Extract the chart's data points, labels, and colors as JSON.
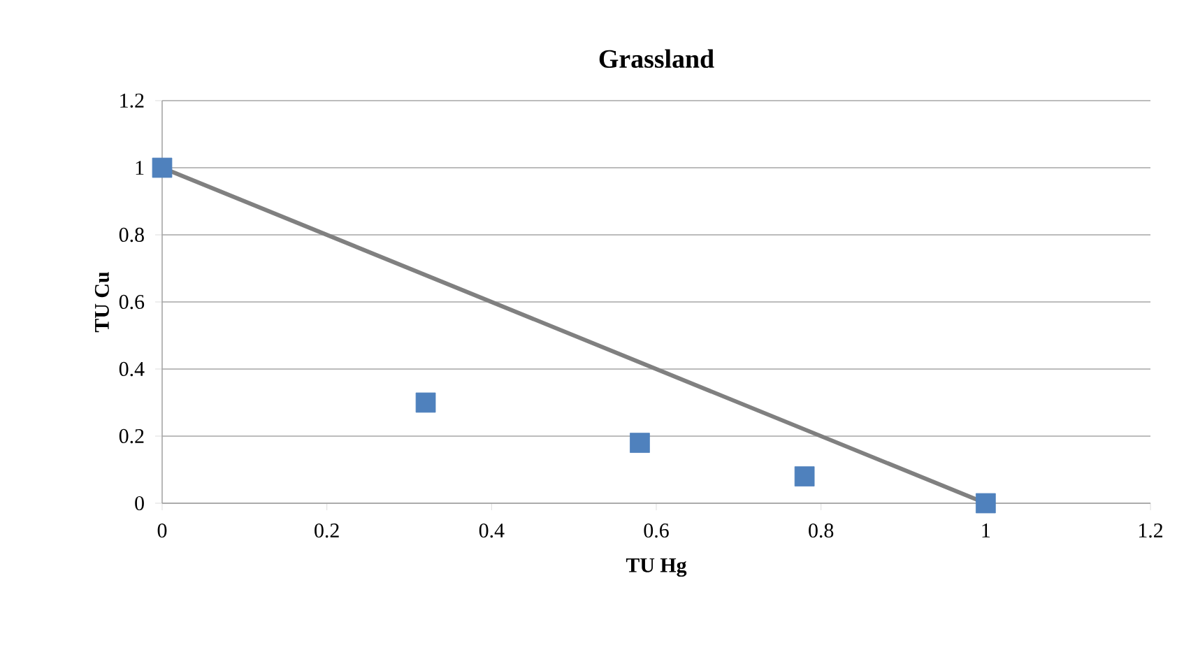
{
  "chart_data": {
    "type": "scatter",
    "title": "Grassland",
    "xlabel": "TU Hg",
    "ylabel": "TU Cu",
    "xlim": [
      0,
      1.2
    ],
    "xticks": [
      0,
      0.2,
      0.4,
      0.6,
      0.8,
      1,
      1.2
    ],
    "ylim": [
      0,
      1.2
    ],
    "yticks": [
      0,
      0.2,
      0.4,
      0.6,
      0.8,
      1,
      1.2
    ],
    "grid": "y",
    "series": [
      {
        "type": "line",
        "color": "#808080",
        "x": [
          0,
          1
        ],
        "values": [
          1,
          0
        ]
      },
      {
        "color": "#4f81bd",
        "marker": "square",
        "x": [
          0,
          0.32,
          0.58,
          0.78,
          1
        ],
        "values": [
          1,
          0.3,
          0.18,
          0.08,
          0
        ]
      }
    ]
  }
}
